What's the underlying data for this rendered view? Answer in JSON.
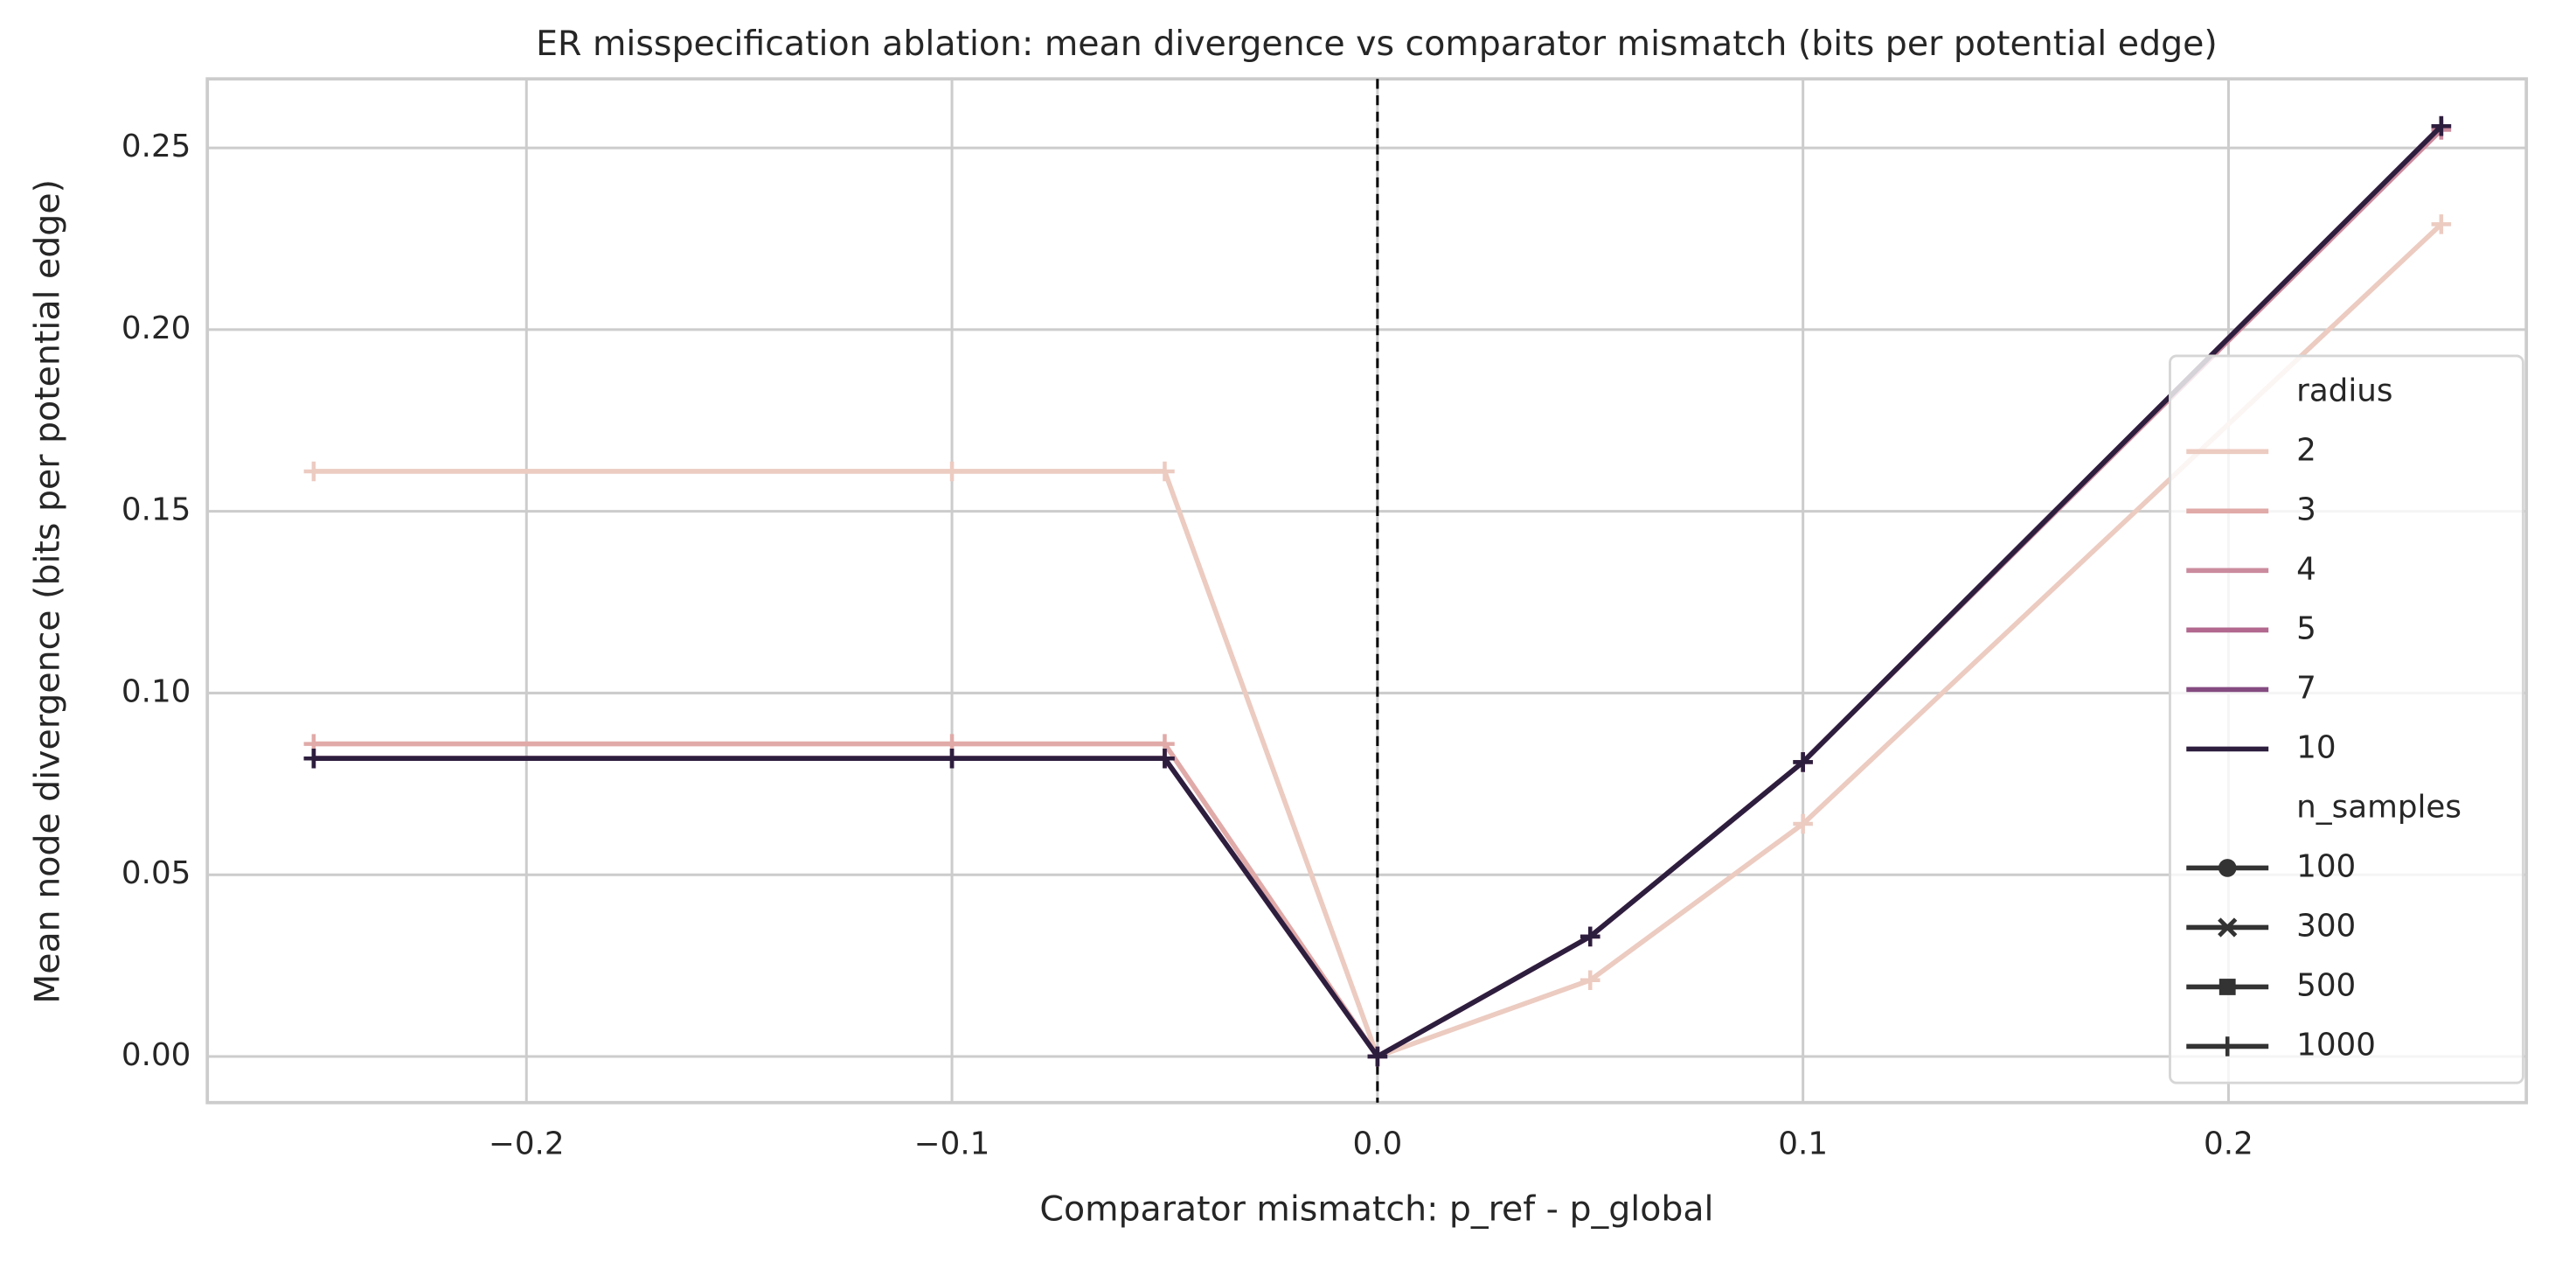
{
  "chart_data": {
    "type": "line",
    "title": "ER misspecification ablation: mean divergence vs comparator mismatch (bits per potential edge)",
    "x_label": "Comparator mismatch: p_ref - p_global",
    "y_label": "Mean node divergence (bits per potential edge)",
    "x": [
      -0.25,
      -0.1,
      -0.05,
      0,
      0.05,
      0.1,
      0.25
    ],
    "series": [
      {
        "name": "2",
        "color": "#eccbc1",
        "values": [
          0.161,
          0.161,
          0.161,
          0,
          0.021,
          0.064,
          0.229
        ]
      },
      {
        "name": "3",
        "color": "#e0aaa8",
        "values": [
          0.086,
          0.086,
          0.086,
          0,
          0.033,
          0.081,
          0.255
        ]
      },
      {
        "name": "4",
        "color": "#cb8b9e",
        "values": [
          0.082,
          0.082,
          0.082,
          0,
          0.033,
          0.081,
          0.255
        ]
      },
      {
        "name": "5",
        "color": "#b2688f",
        "values": [
          0.082,
          0.082,
          0.082,
          0,
          0.033,
          0.081,
          0.256
        ]
      },
      {
        "name": "7",
        "color": "#844b80",
        "values": [
          0.082,
          0.082,
          0.082,
          0,
          0.033,
          0.081,
          0.256
        ]
      },
      {
        "name": "10",
        "color": "#2d1e3e",
        "values": [
          0.082,
          0.082,
          0.082,
          0,
          0.033,
          0.081,
          0.256
        ]
      }
    ],
    "marker": "+",
    "xlim": [
      -0.275,
      0.27
    ],
    "ylim": [
      -0.0127,
      0.269
    ],
    "xticks": [
      {
        "value": -0.2,
        "label": "−0.2"
      },
      {
        "value": -0.1,
        "label": "−0.1"
      },
      {
        "value": 0,
        "label": "0.0"
      },
      {
        "value": 0.1,
        "label": "0.1"
      },
      {
        "value": 0.2,
        "label": "0.2"
      }
    ],
    "yticks": [
      {
        "value": 0,
        "label": "0.00"
      },
      {
        "value": 0.05,
        "label": "0.05"
      },
      {
        "value": 0.1,
        "label": "0.10"
      },
      {
        "value": 0.15,
        "label": "0.15"
      },
      {
        "value": 0.2,
        "label": "0.20"
      },
      {
        "value": 0.25,
        "label": "0.25"
      }
    ],
    "vline": 0,
    "grid": true,
    "legend": {
      "position": "lower right",
      "title": "radius",
      "style_title": "n_samples",
      "style_entries": [
        {
          "name": "100",
          "marker": "o"
        },
        {
          "name": "300",
          "marker": "x"
        },
        {
          "name": "500",
          "marker": "s"
        },
        {
          "name": "1000",
          "marker": "+"
        }
      ]
    }
  }
}
